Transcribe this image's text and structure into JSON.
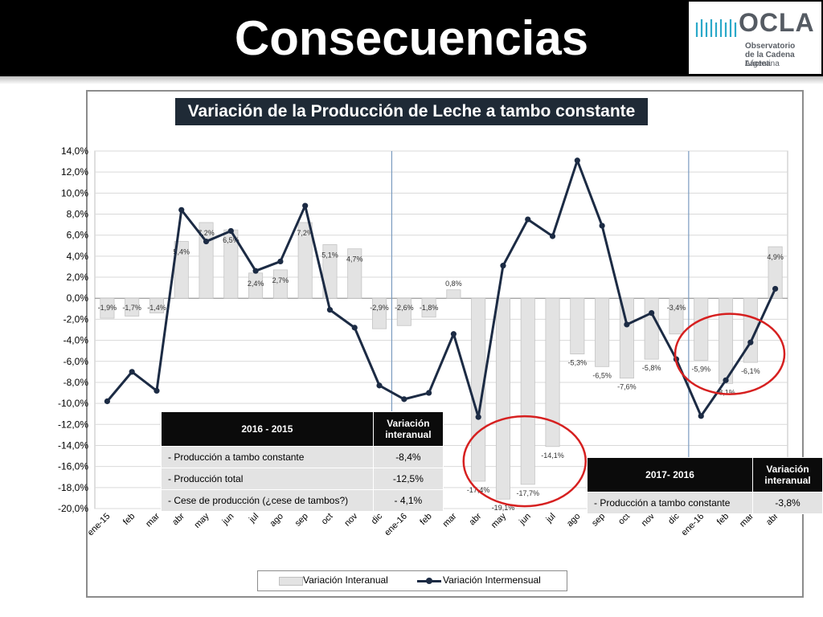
{
  "slide": {
    "title": "Consecuencias"
  },
  "logo": {
    "name": "OCLA",
    "line1": "Observatorio",
    "line2": "de la Cadena Láctea",
    "line3": "Argentina"
  },
  "chart_data": {
    "type": "bar+line",
    "title": "Variación de la Producción de Leche a tambo constante",
    "categories": [
      "ene-15",
      "feb",
      "mar",
      "abr",
      "may",
      "jun",
      "jul",
      "ago",
      "sep",
      "oct",
      "nov",
      "dic",
      "ene-16",
      "feb",
      "mar",
      "abr",
      "may",
      "jun",
      "jul",
      "ago",
      "sep",
      "oct",
      "nov",
      "dic",
      "ene-16",
      "feb",
      "mar",
      "abr"
    ],
    "series": [
      {
        "name": "Variación Interanual",
        "kind": "bar",
        "values": [
          -1.9,
          -1.7,
          -1.4,
          5.4,
          7.2,
          6.5,
          2.4,
          2.7,
          7.2,
          5.1,
          4.7,
          -2.9,
          -2.6,
          -1.8,
          0.8,
          -17.4,
          -19.1,
          -17.7,
          -14.1,
          -5.3,
          -6.5,
          -7.6,
          -5.8,
          -3.4,
          -5.9,
          -8.1,
          -6.1,
          4.9
        ],
        "labels": [
          "-1,9%",
          "-1,7%",
          "-1,4%",
          "5,4%",
          "7,2%",
          "6,5%",
          "2,4%",
          "2,7%",
          "7,2%",
          "5,1%",
          "4,7%",
          "-2,9%",
          "-2,6%",
          "-1,8%",
          "0,8%",
          "-17,4%",
          "-19,1%",
          "-17,7%",
          "-14,1%",
          "-5,3%",
          "-6,5%",
          "-7,6%",
          "-5,8%",
          "-3,4%",
          "-5,9%",
          "-8,1%",
          "-6,1%",
          "4,9%"
        ]
      },
      {
        "name": "Variación Intermensual",
        "kind": "line",
        "values": [
          -9.8,
          -7.0,
          -8.8,
          8.4,
          5.4,
          6.4,
          2.6,
          3.5,
          8.8,
          -1.1,
          -2.8,
          -8.3,
          -9.6,
          -9.0,
          -3.4,
          -11.3,
          3.1,
          7.5,
          5.9,
          13.1,
          6.9,
          -2.5,
          -1.4,
          -5.8,
          -11.2,
          -7.8,
          -4.2,
          0.9
        ]
      }
    ],
    "yaxis": {
      "min": -20,
      "max": 14,
      "step": 2,
      "tick_labels": [
        "14,0%",
        "12,0%",
        "10,0%",
        "8,0%",
        "6,0%",
        "4,0%",
        "2,0%",
        "0,0%",
        "-2,0%",
        "-4,0%",
        "-6,0%",
        "-8,0%",
        "-10,0%",
        "-12,0%",
        "-14,0%",
        "-16,0%",
        "-18,0%",
        "-20,0%"
      ]
    },
    "vertical_separators_after_index": [
      11,
      23
    ],
    "highlight_circles": [
      "may-jul 2016",
      "ene-mar 2017"
    ],
    "grid": true,
    "legend_position": "bottom",
    "colors": {
      "bar": "#e3e3e3",
      "bar_border": "#c4c4c4",
      "line": "#1c2b44",
      "circle": "#d62020",
      "separator": "#7a9bbf"
    }
  },
  "table1": {
    "header_period": "2016 - 2015",
    "header_value_line1": "Variación",
    "header_value_line2": "interanual",
    "rows": [
      {
        "label": "- Producción a tambo constante",
        "value": "-8,4%"
      },
      {
        "label": "- Producción total",
        "value": "-12,5%"
      },
      {
        "label": "- Cese de producción (¿cese de tambos?)",
        "value": "- 4,1%"
      }
    ]
  },
  "table2": {
    "header_period": "2017- 2016",
    "header_value_line1": "Variación",
    "header_value_line2": "interanual",
    "rows": [
      {
        "label": "- Producción a tambo constante",
        "value": "-3,8%"
      }
    ]
  },
  "legend": {
    "bar_label": "Variación Interanual",
    "line_label": "Variación Intermensual"
  }
}
